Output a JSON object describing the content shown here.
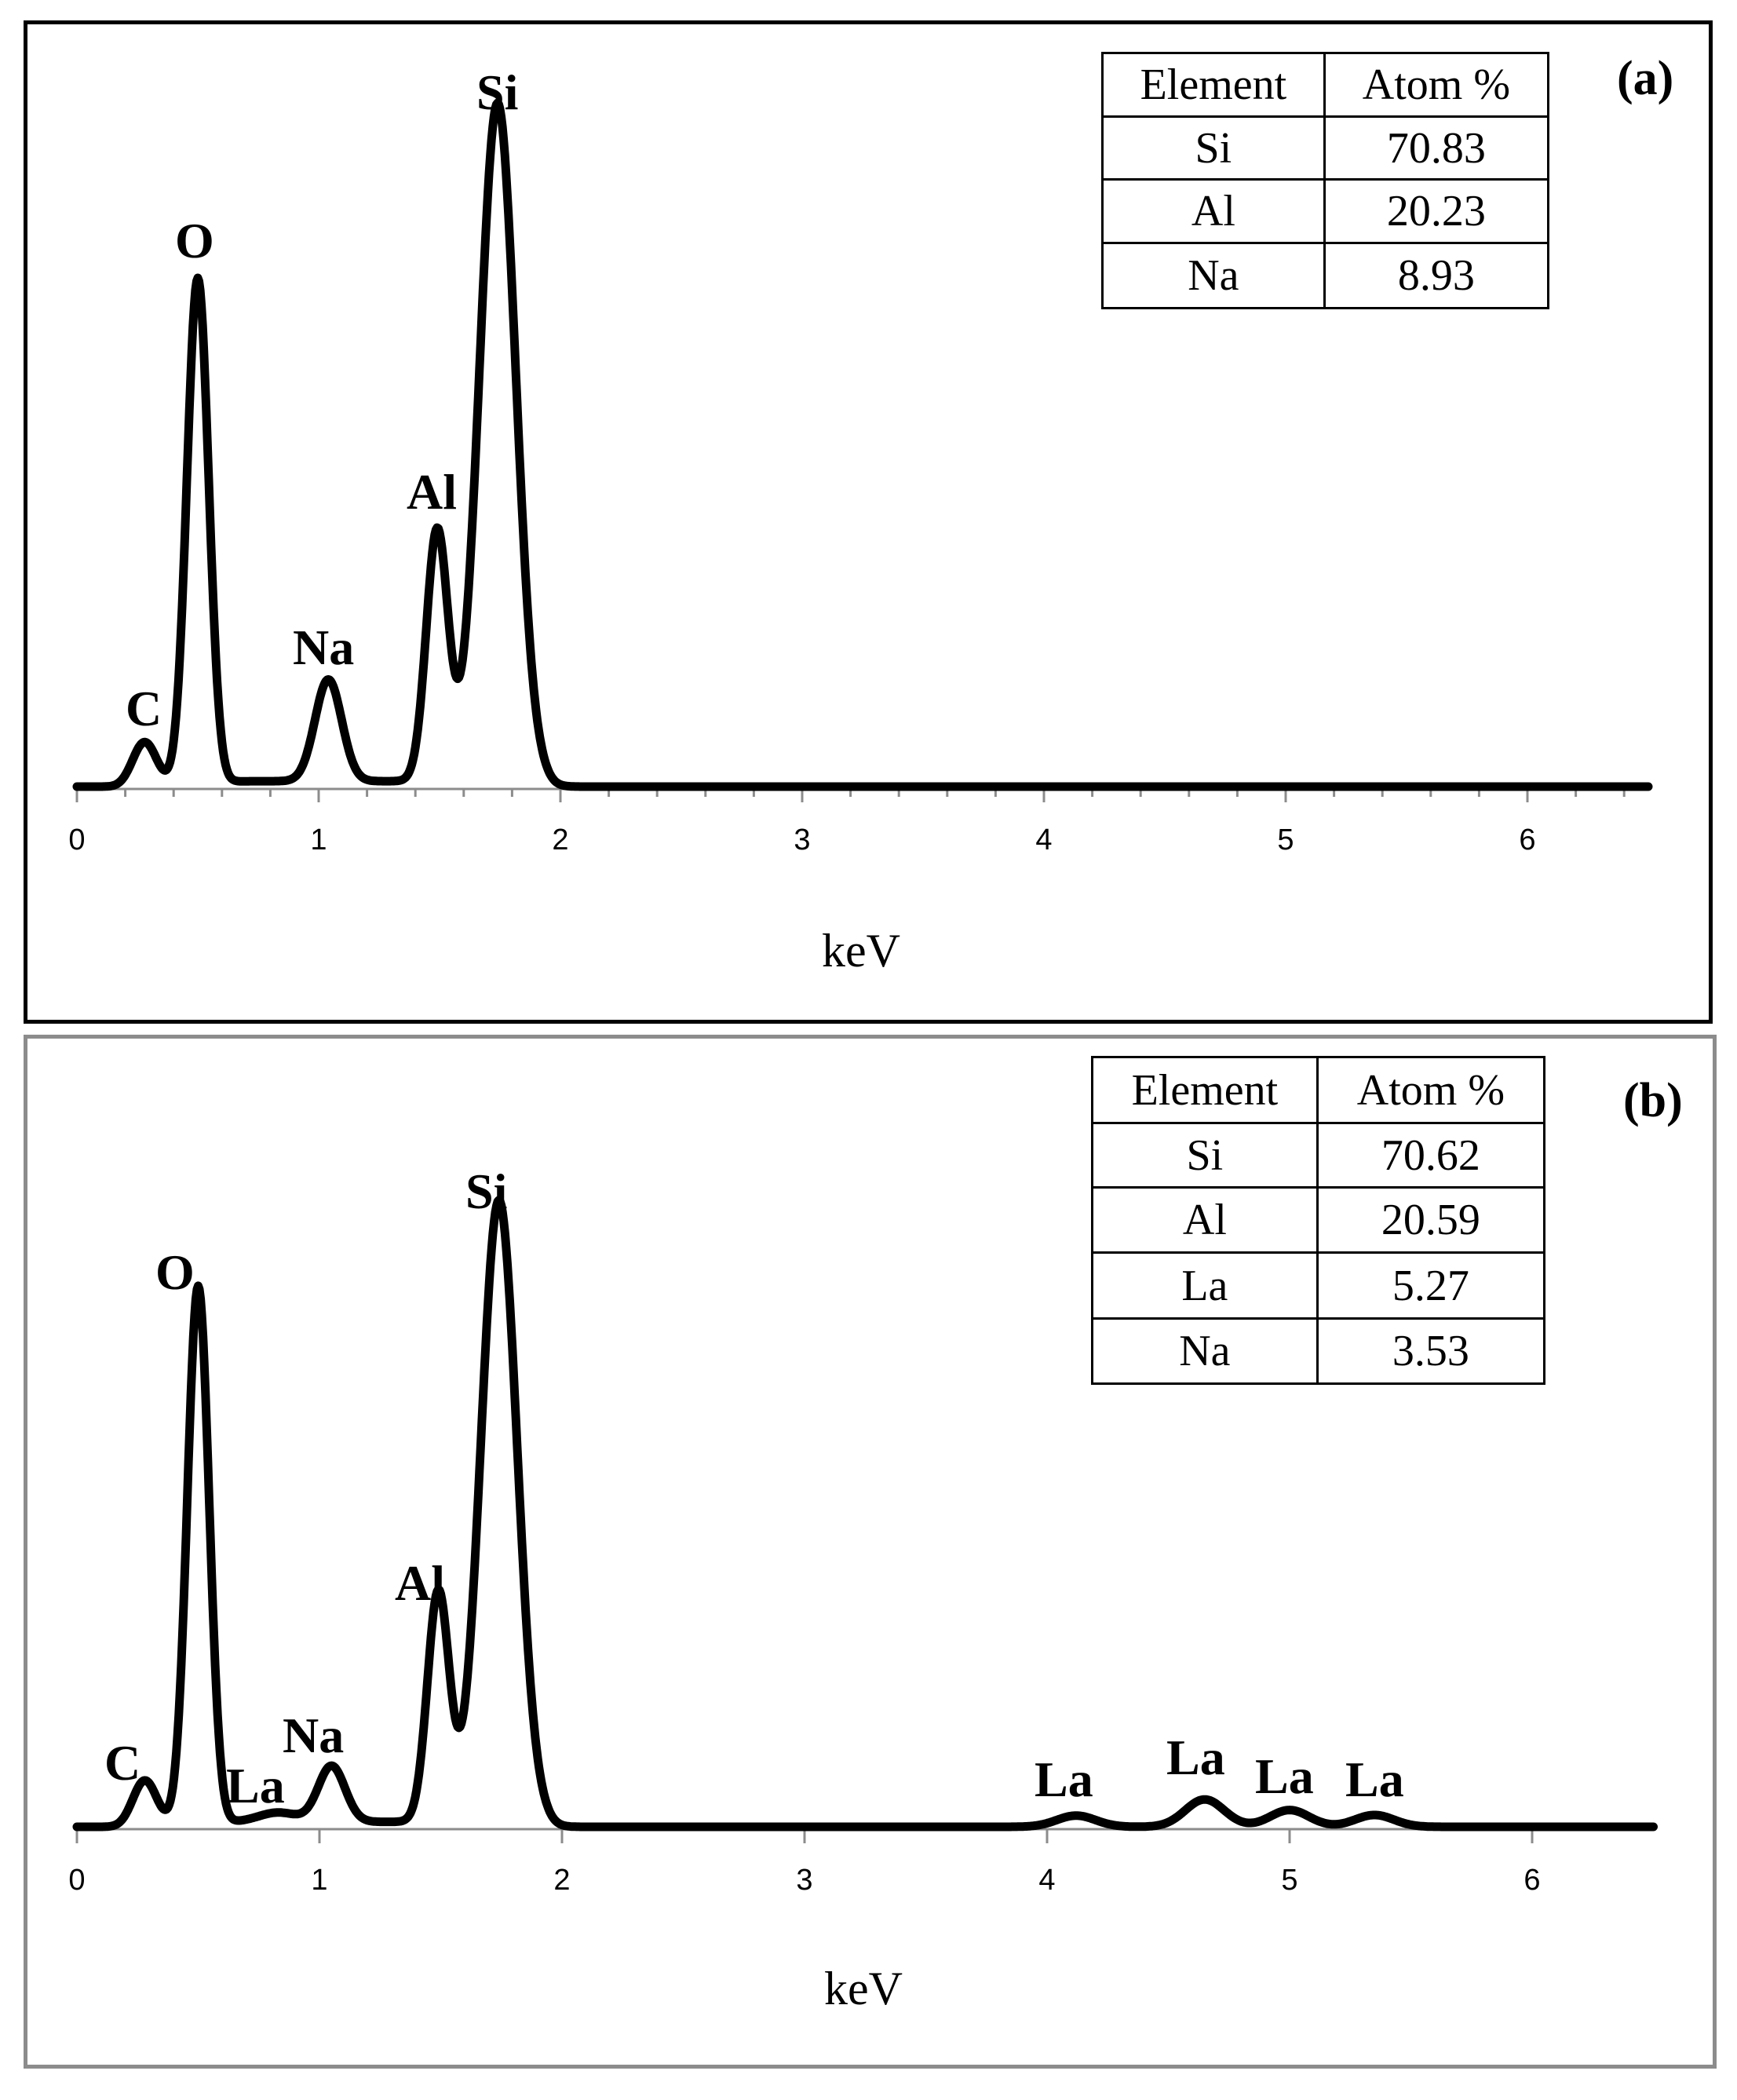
{
  "chart_data": [
    {
      "type": "line",
      "panel": "(a)",
      "title": "",
      "xlabel": "keV",
      "ylabel": "",
      "xlim": [
        0,
        6.5
      ],
      "x_ticks": [
        "0",
        "1",
        "2",
        "3",
        "4",
        "5",
        "6"
      ],
      "minor_ticks_step": 0.2,
      "grid": false,
      "peaks": [
        {
          "element": "C",
          "keV": 0.28,
          "relative_intensity": 6.6
        },
        {
          "element": "O",
          "keV": 0.5,
          "relative_intensity": 75
        },
        {
          "element": "Na",
          "keV": 1.04,
          "relative_intensity": 15
        },
        {
          "element": "Al",
          "keV": 1.49,
          "relative_intensity": 37
        },
        {
          "element": "Si",
          "keV": 1.74,
          "relative_intensity": 100
        }
      ],
      "table": {
        "headers": [
          "Element",
          "Atom %"
        ],
        "rows": [
          [
            "Si",
            "70.83"
          ],
          [
            "Al",
            "20.23"
          ],
          [
            "Na",
            "8.93"
          ]
        ]
      }
    },
    {
      "type": "line",
      "panel": "(b)",
      "title": "",
      "xlabel": "keV",
      "ylabel": "",
      "xlim": [
        0,
        6.5
      ],
      "x_ticks": [
        "0",
        "1",
        "2",
        "3",
        "4",
        "5",
        "6"
      ],
      "grid": false,
      "peaks": [
        {
          "element": "C",
          "keV": 0.28,
          "relative_intensity": 7.5
        },
        {
          "element": "O",
          "keV": 0.5,
          "relative_intensity": 87
        },
        {
          "element": "La",
          "keV": 0.83,
          "relative_intensity": 1.5
        },
        {
          "element": "Na",
          "keV": 1.05,
          "relative_intensity": 9
        },
        {
          "element": "Al",
          "keV": 1.49,
          "relative_intensity": 37
        },
        {
          "element": "Si",
          "keV": 1.74,
          "relative_intensity": 100
        },
        {
          "element": "La",
          "keV": 4.12,
          "relative_intensity": 1.8
        },
        {
          "element": "La",
          "keV": 4.65,
          "relative_intensity": 4.4
        },
        {
          "element": "La",
          "keV": 5.0,
          "relative_intensity": 2.7
        },
        {
          "element": "La",
          "keV": 5.35,
          "relative_intensity": 1.9
        }
      ],
      "table": {
        "headers": [
          "Element",
          "Atom %"
        ],
        "rows": [
          [
            "Si",
            "70.62"
          ],
          [
            "Al",
            "20.59"
          ],
          [
            "La",
            "5.27"
          ],
          [
            "Na",
            "3.53"
          ]
        ]
      }
    }
  ],
  "panels": {
    "a": {
      "tag": "(a)",
      "xlabel": "keV",
      "ticks": [
        "0",
        "1",
        "2",
        "3",
        "4",
        "5",
        "6"
      ],
      "labels": [
        "C",
        "O",
        "Na",
        "Al",
        "Si"
      ],
      "table": {
        "h1": "Element",
        "h2": "Atom %",
        "rows": [
          {
            "el": "Si",
            "val": "70.83"
          },
          {
            "el": "Al",
            "val": "20.23"
          },
          {
            "el": "Na",
            "val": "8.93"
          }
        ]
      }
    },
    "b": {
      "tag": "(b)",
      "xlabel": "keV",
      "ticks": [
        "0",
        "1",
        "2",
        "3",
        "4",
        "5",
        "6"
      ],
      "labels": [
        "C",
        "O",
        "La",
        "Na",
        "Al",
        "Si",
        "La",
        "La",
        "La",
        "La"
      ],
      "table": {
        "h1": "Element",
        "h2": "Atom %",
        "rows": [
          {
            "el": "Si",
            "val": "70.62"
          },
          {
            "el": "Al",
            "val": "20.59"
          },
          {
            "el": "La",
            "val": "5.27"
          },
          {
            "el": "Na",
            "val": "3.53"
          }
        ]
      }
    }
  },
  "colors": {
    "line": "#000000",
    "axis": "#8c8c8c",
    "frame_a": "#000000",
    "frame_b": "#8c8c8c"
  }
}
